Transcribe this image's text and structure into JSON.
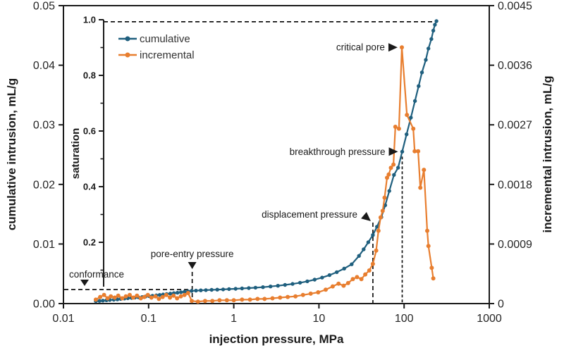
{
  "figure": {
    "background": "#ffffff",
    "spine_color": "#1a1a1a",
    "guide_color": "#111111"
  },
  "chart_data": {
    "type": "line",
    "title": "",
    "x_axis": {
      "label": "injection pressure, MPa",
      "scale": "log",
      "range": [
        0.01,
        1000
      ],
      "ticks": [
        0.01,
        0.1,
        1,
        10,
        100,
        1000
      ],
      "tick_labels": [
        "0.01",
        "0.1",
        "1",
        "10",
        "100",
        "1000"
      ]
    },
    "y_left": {
      "label": "cumulative intrusion, mL/g",
      "range": [
        0,
        0.05
      ],
      "ticks": [
        0,
        0.01,
        0.02,
        0.03,
        0.04,
        0.05
      ],
      "tick_labels": [
        "0.00",
        "0.01",
        "0.02",
        "0.03",
        "0.04",
        "0.05"
      ]
    },
    "y_right": {
      "label": "incremental intrusion, mL/g",
      "range": [
        0,
        0.0045
      ],
      "ticks": [
        0,
        0.0009,
        0.0018,
        0.0027,
        0.0036,
        0.0045
      ],
      "tick_labels": [
        "0",
        "0.0009",
        "0.0018",
        "0.0027",
        "0.0036",
        "0.0045"
      ]
    },
    "y_inner": {
      "label": "saturation",
      "range": [
        0,
        1
      ],
      "major_ticks": [
        1.0,
        0.8,
        0.6,
        0.4,
        0.2
      ],
      "major_tick_labels": [
        "1.0",
        "0.8",
        "0.6",
        "0.4",
        "0.2"
      ],
      "minor_ticks": [
        0.9,
        0.7,
        0.5,
        0.3,
        0.1
      ]
    },
    "legend": {
      "position": "top-left",
      "entries": [
        "cumulative",
        "incremental"
      ]
    },
    "series": [
      {
        "name": "cumulative",
        "axis": "left",
        "color": "#1f5f7e",
        "points": [
          [
            0.024,
            0.0004
          ],
          [
            0.0265,
            0.00045
          ],
          [
            0.029,
            0.0005
          ],
          [
            0.032,
            0.00055
          ],
          [
            0.035,
            0.0006
          ],
          [
            0.039,
            0.00065
          ],
          [
            0.043,
            0.0007
          ],
          [
            0.047,
            0.00078
          ],
          [
            0.052,
            0.00085
          ],
          [
            0.057,
            0.0009
          ],
          [
            0.063,
            0.00095
          ],
          [
            0.069,
            0.001
          ],
          [
            0.076,
            0.00105
          ],
          [
            0.084,
            0.0011
          ],
          [
            0.092,
            0.00118
          ],
          [
            0.101,
            0.00125
          ],
          [
            0.111,
            0.0013
          ],
          [
            0.123,
            0.00138
          ],
          [
            0.135,
            0.00145
          ],
          [
            0.148,
            0.00152
          ],
          [
            0.163,
            0.0016
          ],
          [
            0.18,
            0.00168
          ],
          [
            0.198,
            0.00175
          ],
          [
            0.218,
            0.00182
          ],
          [
            0.24,
            0.0019
          ],
          [
            0.264,
            0.00198
          ],
          [
            0.29,
            0.00205
          ],
          [
            0.32,
            0.00213
          ],
          [
            0.36,
            0.00218
          ],
          [
            0.41,
            0.00222
          ],
          [
            0.47,
            0.00226
          ],
          [
            0.55,
            0.0023
          ],
          [
            0.64,
            0.00234
          ],
          [
            0.75,
            0.00238
          ],
          [
            0.88,
            0.00243
          ],
          [
            1.05,
            0.00248
          ],
          [
            1.25,
            0.00254
          ],
          [
            1.5,
            0.0026
          ],
          [
            1.8,
            0.00267
          ],
          [
            2.2,
            0.00276
          ],
          [
            2.7,
            0.00287
          ],
          [
            3.3,
            0.00299
          ],
          [
            4.0,
            0.00313
          ],
          [
            4.9,
            0.0033
          ],
          [
            6.0,
            0.0035
          ],
          [
            7.3,
            0.00374
          ],
          [
            8.9,
            0.00402
          ],
          [
            10.9,
            0.00436
          ],
          [
            13.3,
            0.00477
          ],
          [
            16.2,
            0.00527
          ],
          [
            19.8,
            0.00588
          ],
          [
            24.2,
            0.0066
          ],
          [
            29.5,
            0.008
          ],
          [
            33.5,
            0.0091
          ],
          [
            38,
            0.0103
          ],
          [
            43,
            0.0115
          ],
          [
            48,
            0.0129
          ],
          [
            54,
            0.0145
          ],
          [
            60,
            0.0165
          ],
          [
            67,
            0.0189
          ],
          [
            76,
            0.0216
          ],
          [
            85,
            0.0228
          ],
          [
            95,
            0.0255
          ],
          [
            107,
            0.0284
          ],
          [
            120,
            0.0312
          ],
          [
            134,
            0.034
          ],
          [
            148,
            0.0365
          ],
          [
            162,
            0.0388
          ],
          [
            180,
            0.0409
          ],
          [
            193,
            0.0428
          ],
          [
            209,
            0.0444
          ],
          [
            220,
            0.0458
          ],
          [
            230,
            0.0468
          ],
          [
            240,
            0.0474
          ]
        ]
      },
      {
        "name": "incremental",
        "axis": "right",
        "color": "#e87e2f",
        "points": [
          [
            0.024,
            6e-05
          ],
          [
            0.027,
            0.0001
          ],
          [
            0.03,
            0.00013
          ],
          [
            0.033,
            8e-05
          ],
          [
            0.036,
            0.00011
          ],
          [
            0.04,
            9e-05
          ],
          [
            0.044,
            0.00012
          ],
          [
            0.049,
            8e-05
          ],
          [
            0.054,
            0.00011
          ],
          [
            0.06,
            0.00013
          ],
          [
            0.066,
            9e-05
          ],
          [
            0.073,
            0.00012
          ],
          [
            0.081,
            8e-05
          ],
          [
            0.089,
            0.0001
          ],
          [
            0.098,
            0.00013
          ],
          [
            0.108,
            9e-05
          ],
          [
            0.12,
            0.00011
          ],
          [
            0.132,
            7e-05
          ],
          [
            0.146,
            0.0001
          ],
          [
            0.161,
            0.00013
          ],
          [
            0.178,
            9e-05
          ],
          [
            0.196,
            0.00012
          ],
          [
            0.216,
            8e-05
          ],
          [
            0.239,
            0.00011
          ],
          [
            0.264,
            0.00013
          ],
          [
            0.291,
            0.00016
          ],
          [
            0.321,
            4e-05
          ],
          [
            0.38,
            3e-05
          ],
          [
            0.46,
            4e-05
          ],
          [
            0.56,
            4e-05
          ],
          [
            0.68,
            5e-05
          ],
          [
            0.83,
            5e-05
          ],
          [
            1.0,
            5e-05
          ],
          [
            1.25,
            6e-05
          ],
          [
            1.55,
            6e-05
          ],
          [
            1.9,
            7e-05
          ],
          [
            2.3,
            7e-05
          ],
          [
            2.85,
            8e-05
          ],
          [
            3.5,
            9e-05
          ],
          [
            4.3,
            0.0001
          ],
          [
            5.3,
            0.00011
          ],
          [
            6.5,
            0.00013
          ],
          [
            8.0,
            0.00015
          ],
          [
            9.8,
            0.00017
          ],
          [
            12,
            0.00021
          ],
          [
            14.5,
            0.00026
          ],
          [
            17,
            0.0003
          ],
          [
            19.5,
            0.00027
          ],
          [
            22,
            0.00031
          ],
          [
            25,
            0.00037
          ],
          [
            28,
            0.0004
          ],
          [
            31.5,
            0.00037
          ],
          [
            35,
            0.00044
          ],
          [
            39,
            0.0005
          ],
          [
            43,
            0.0006
          ],
          [
            47,
            0.0008
          ],
          [
            50,
            0.0011
          ],
          [
            53,
            0.0013
          ],
          [
            56,
            0.0014
          ],
          [
            59,
            0.0016
          ],
          [
            63,
            0.0019
          ],
          [
            66,
            0.00195
          ],
          [
            70,
            0.00205
          ],
          [
            75,
            0.0021
          ],
          [
            79,
            0.00267
          ],
          [
            87,
            0.00264
          ],
          [
            94,
            0.00387
          ],
          [
            108,
            0.00285
          ],
          [
            128,
            0.00264
          ],
          [
            133,
            0.0023
          ],
          [
            146,
            0.0023
          ],
          [
            155,
            0.00175
          ],
          [
            171,
            0.00202
          ],
          [
            187,
            0.0011
          ],
          [
            193,
            0.00087
          ],
          [
            211,
            0.00054
          ],
          [
            220,
            0.00038
          ]
        ]
      }
    ],
    "annotations": [
      {
        "label": "critical pore",
        "arrow": "right",
        "pressure": 94,
        "value": 0.00387,
        "axis": "right"
      },
      {
        "label": "breakthrough pressure",
        "arrow": "right",
        "pressure": 95,
        "value": 0.0255,
        "axis": "left",
        "guide": "vertical"
      },
      {
        "label": "displacement pressure",
        "arrow": "down-right",
        "pressure": 43,
        "axis": "left",
        "guide": "vertical"
      },
      {
        "label": "pore-entry pressure",
        "arrow": "down",
        "pressure": 0.325,
        "axis": "left",
        "guide": "vertical"
      },
      {
        "label": "conformance",
        "arrow": "down",
        "value": 0.00235,
        "axis": "left",
        "guide": "horizontal"
      }
    ],
    "guides": [
      {
        "name": "saturation-1.0-line",
        "type": "horizontal",
        "axis": "left",
        "value": 0.0473
      }
    ]
  }
}
